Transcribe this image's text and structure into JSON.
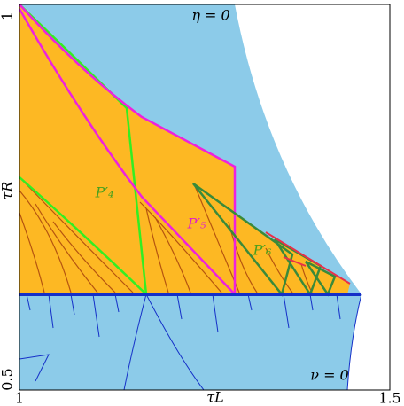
{
  "chart_data": {
    "type": "region",
    "xlabel": "τL",
    "ylabel": "τR",
    "xlim": [
      1,
      1.5
    ],
    "ylim": [
      0.5,
      1
    ],
    "xticks": [
      1,
      1.5
    ],
    "yticks": [
      0.5,
      1
    ],
    "annotations": [
      "η = 0",
      "ν = 0",
      "P′₄",
      "P′₅",
      "P′₆"
    ]
  }
}
